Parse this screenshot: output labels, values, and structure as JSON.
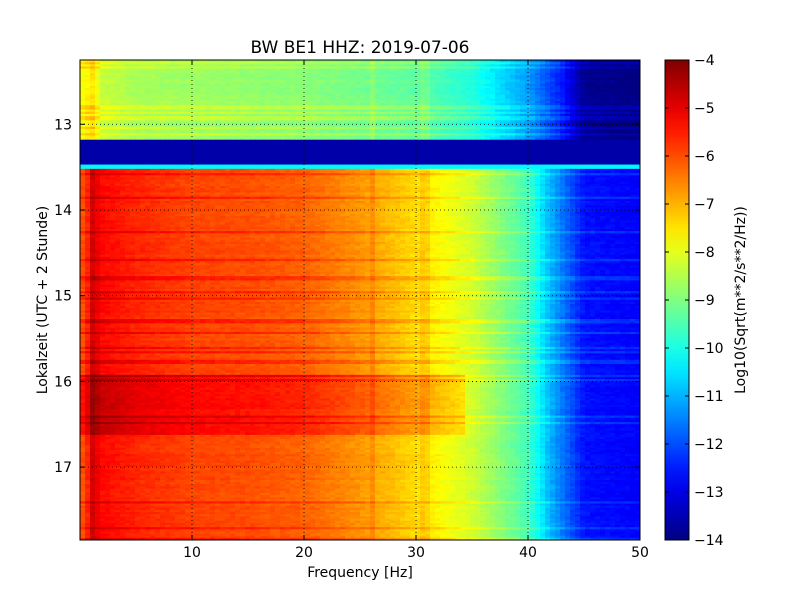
{
  "chart_data": {
    "type": "heatmap",
    "title": "BW BE1 HHZ: 2019-07-06",
    "xlabel": "Frequency [Hz]",
    "ylabel": "Lokalzeit (UTC + 2 Stunde)",
    "colorbar_label": "Log10(Sqrt(m**2/s**2/Hz))",
    "colormap": "jet",
    "grid": true,
    "xlim": [
      0,
      50
    ],
    "ylim": [
      17.85,
      12.25
    ],
    "y_inverted": true,
    "clim": [
      -14,
      -4
    ],
    "x_ticks": [
      10,
      20,
      30,
      40,
      50
    ],
    "x_tick_labels": [
      "10",
      "20",
      "30",
      "40",
      "50"
    ],
    "y_ticks": [
      13,
      14,
      15,
      16,
      17
    ],
    "y_tick_labels": [
      "13",
      "14",
      "15",
      "16",
      "17"
    ],
    "colorbar_ticks": [
      -4,
      -5,
      -6,
      -7,
      -8,
      -9,
      -10,
      -11,
      -12,
      -13,
      -14
    ],
    "colorbar_tick_labels": [
      "−4",
      "−5",
      "−6",
      "−7",
      "−8",
      "−9",
      "−10",
      "−11",
      "−12",
      "−13",
      "−14"
    ],
    "time_segments": [
      {
        "t_start": 12.25,
        "t_end": 13.18,
        "level": "low",
        "freq_hz": [
          0.5,
          1,
          2,
          5,
          10,
          15,
          20,
          25,
          30,
          35,
          40,
          43,
          45,
          50
        ],
        "log10_psd": [
          -7.8,
          -7.4,
          -8.3,
          -8.6,
          -8.7,
          -8.8,
          -8.9,
          -9.1,
          -9.3,
          -9.9,
          -11.2,
          -12.5,
          -13.8,
          -14
        ]
      },
      {
        "t_start": 13.18,
        "t_end": 13.47,
        "level": "gap",
        "log10_psd_const": -13.6
      },
      {
        "t_start": 13.47,
        "t_end": 13.52,
        "level": "edge",
        "log10_psd_const": -10.3
      },
      {
        "t_start": 13.52,
        "t_end": 17.85,
        "level": "high",
        "freq_hz": [
          0.5,
          1,
          2,
          5,
          10,
          15,
          20,
          25,
          30,
          35,
          40,
          42,
          45,
          50
        ],
        "log10_psd": [
          -6.0,
          -4.8,
          -5.3,
          -5.6,
          -5.9,
          -6.0,
          -6.2,
          -6.7,
          -7.4,
          -8.2,
          -9.6,
          -11.0,
          -12.6,
          -12.8
        ]
      }
    ],
    "high_activity_period": {
      "t_start": 15.9,
      "t_end": 16.6,
      "freq_max_hz": 34,
      "delta_log10": 0.6
    },
    "stripe_vertical_hz": [
      26.2,
      30.8
    ]
  }
}
